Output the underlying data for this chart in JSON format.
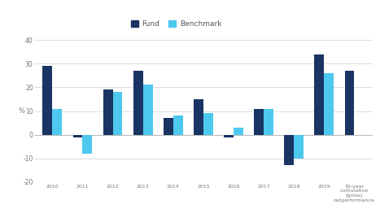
{
  "categories": [
    "2010",
    "2011",
    "2012",
    "2013",
    "2014",
    "2015",
    "2016",
    "2017",
    "2018",
    "2019",
    "10-year\ncumulative\n(gross)\noutperformance"
  ],
  "fund_values": [
    29,
    -1,
    19,
    27,
    7,
    15,
    -1,
    11,
    -13,
    34,
    27
  ],
  "benchmark_values": [
    11,
    -8,
    18,
    21,
    8,
    9,
    3,
    11,
    -10,
    26,
    0
  ],
  "fund_color": "#1a3563",
  "benchmark_color": "#4dc8ef",
  "ylim": [
    -20,
    40
  ],
  "yticks": [
    -20,
    -10,
    0,
    10,
    20,
    30,
    40
  ],
  "ylabel": "%",
  "background_color": "#ffffff",
  "grid_color": "#d0d0d0",
  "legend_fund_label": "Fund",
  "legend_benchmark_label": "Benchmark",
  "bar_width": 0.32
}
